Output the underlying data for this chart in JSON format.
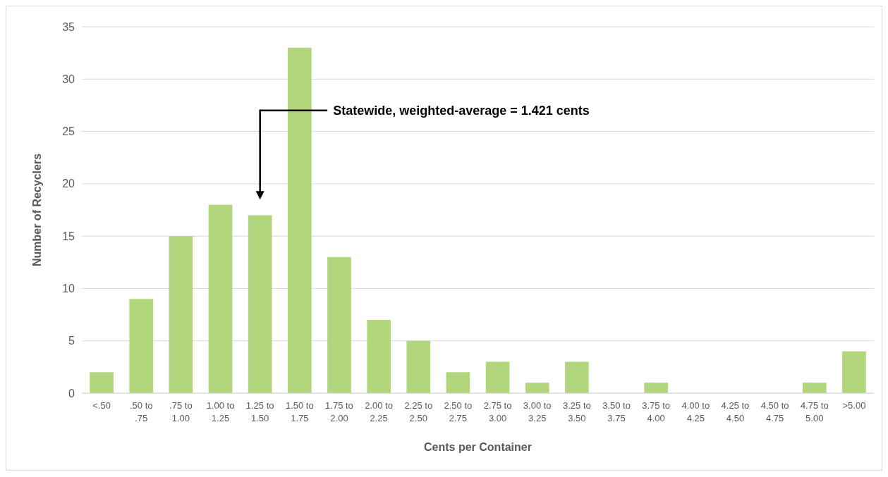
{
  "chart_data": {
    "type": "bar",
    "xlabel": "Cents per Container",
    "ylabel": "Number of Recyclers",
    "categories": [
      "<.50",
      ".50 to .75",
      ".75 to 1.00",
      "1.00 to 1.25",
      "1.25 to 1.50",
      "1.50 to 1.75",
      "1.75 to 2.00",
      "2.00 to 2.25",
      "2.25 to 2.50",
      "2.50 to 2.75",
      "2.75 to 3.00",
      "3.00 to 3.25",
      "3.25 to 3.50",
      "3.50 to 3.75",
      "3.75 to 4.00",
      "4.00 to 4.25",
      "4.25 to 4.50",
      "4.50 to 4.75",
      "4.75 to 5.00",
      ">5.00"
    ],
    "values": [
      2,
      9,
      15,
      18,
      17,
      33,
      13,
      7,
      5,
      2,
      3,
      1,
      3,
      0,
      1,
      0,
      0,
      0,
      1,
      4
    ],
    "color": "#b1d67c",
    "ylim": [
      0,
      35
    ],
    "yticks": [
      0,
      5,
      10,
      15,
      20,
      25,
      30,
      35
    ],
    "grid": "y",
    "annotations": [
      "Statewide, weighted-average = 1.421 cents"
    ]
  }
}
